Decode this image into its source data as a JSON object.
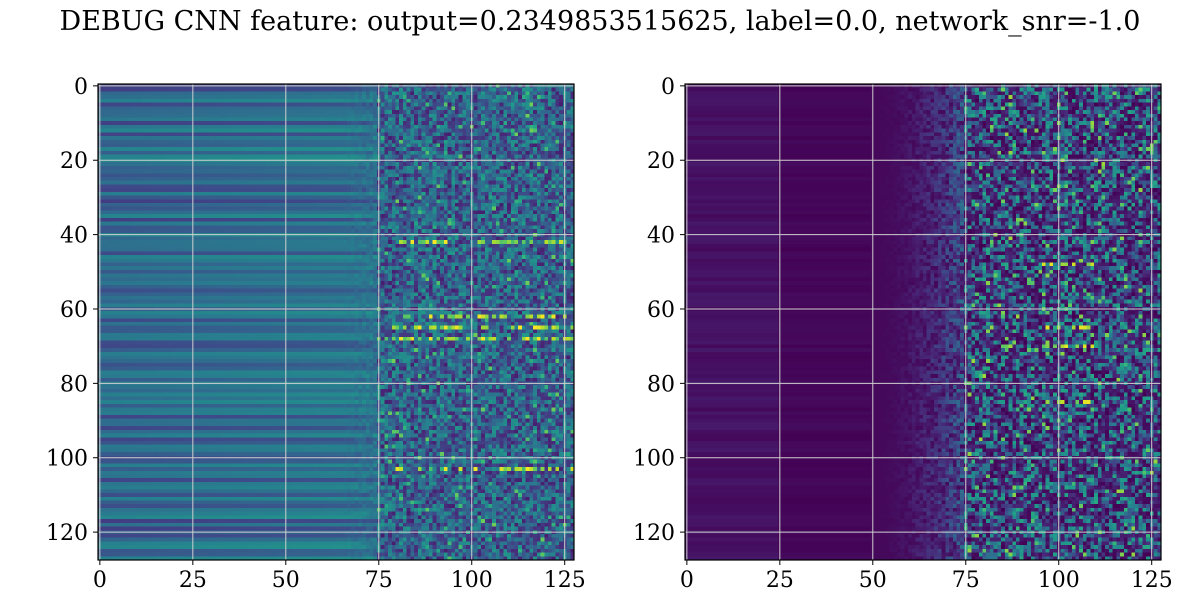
{
  "title": "DEBUG CNN feature: output=0.2349853515625, label=0.0, network_snr=-1.0",
  "chart_data": [
    {
      "type": "heatmap",
      "title": "",
      "xlabel": "",
      "ylabel": "",
      "xlim": [
        0,
        127
      ],
      "ylim": [
        127,
        0
      ],
      "grid": true,
      "colormap": "viridis",
      "shape": [
        128,
        128
      ],
      "xticks": [
        0,
        25,
        50,
        75,
        100,
        125
      ],
      "yticks": [
        0,
        20,
        40,
        60,
        80,
        100,
        120
      ],
      "xtick_labels": [
        "0",
        "25",
        "50",
        "75",
        "100",
        "125"
      ],
      "ytick_labels": [
        "0",
        "20",
        "40",
        "60",
        "80",
        "100",
        "120"
      ],
      "description_values": {
        "left_region_level": 0.3,
        "transition_column": 75,
        "right_region_level": 0.4,
        "bright_row_highlights": [
          42,
          62,
          65,
          68,
          103
        ]
      }
    },
    {
      "type": "heatmap",
      "title": "",
      "xlabel": "",
      "ylabel": "",
      "xlim": [
        0,
        127
      ],
      "ylim": [
        127,
        0
      ],
      "grid": true,
      "colormap": "viridis",
      "shape": [
        128,
        128
      ],
      "xticks": [
        0,
        25,
        50,
        75,
        100,
        125
      ],
      "yticks": [
        0,
        20,
        40,
        60,
        80,
        100,
        120
      ],
      "xtick_labels": [
        "0",
        "25",
        "50",
        "75",
        "100",
        "125"
      ],
      "ytick_labels": [
        "0",
        "20",
        "40",
        "60",
        "80",
        "100",
        "120"
      ],
      "description_values": {
        "left_region_level": 0.03,
        "transition_column": 60,
        "right_region_level": 0.25,
        "bright_row_highlights": [
          48,
          65,
          70,
          85
        ]
      }
    }
  ],
  "colors": {
    "viridis": [
      "#440154",
      "#482878",
      "#3e4989",
      "#31688e",
      "#26828e",
      "#1f9e89",
      "#35b779",
      "#6ece58",
      "#b5de2b",
      "#fde725"
    ],
    "grid": "#d0d0d0",
    "axes": "#000000",
    "background": "#ffffff"
  }
}
